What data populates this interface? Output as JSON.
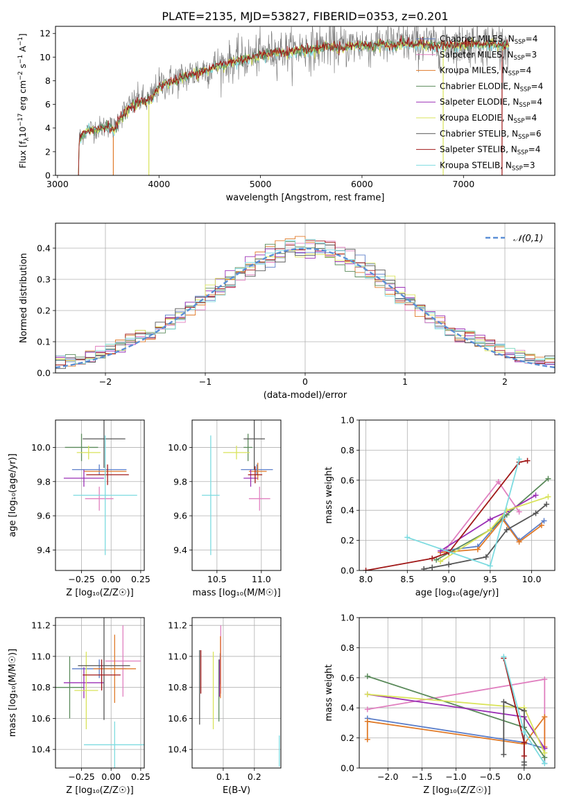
{
  "page_title": "PLATE=2135, MJD=53827, FIBERID=0353, z=0.201",
  "chart_data": [
    {
      "id": "spectrum",
      "type": "line",
      "xlabel": "wavelength [Angstrom, rest frame]",
      "ylabel_parts": {
        "main": "Flux [f",
        "sub": "λ",
        "mid": "10",
        "exp1": "−17",
        "tail": " erg cm",
        "exp2": "−2",
        "tail2": " s",
        "exp3": "−1",
        "tail3": " A",
        "exp4": "−1",
        "end": "]"
      },
      "xlim": [
        2980,
        7900
      ],
      "ylim": [
        0,
        12.6
      ],
      "xticks": [
        3000,
        4000,
        5000,
        6000,
        7000
      ],
      "yticks": [
        0,
        2,
        4,
        6,
        8,
        10,
        12
      ],
      "xtick_labels": [
        "3000",
        "4000",
        "5000",
        "6000",
        "7000"
      ],
      "ytick_labels": [
        "0",
        "2",
        "4",
        "6",
        "8",
        "10",
        "12"
      ],
      "data_curve_x": [
        3200,
        3215,
        3260,
        3300,
        3400,
        3500,
        3560,
        3600,
        3700,
        3800,
        3900,
        3950,
        4000,
        4100,
        4200,
        4300,
        4400,
        4500,
        4600,
        4700,
        4800,
        4900,
        5000,
        5100,
        5200,
        5300,
        5400,
        5500,
        5600,
        5700,
        5800,
        5900,
        6000,
        6100,
        6200,
        6300,
        6400,
        6500,
        6600,
        6700,
        6800,
        6900,
        7000,
        7100,
        7200,
        7300,
        7400,
        7450
      ],
      "data_curve_y": [
        0,
        3.2,
        3.6,
        3.9,
        4.0,
        4.2,
        4.0,
        4.8,
        5.8,
        6.4,
        6.3,
        7.0,
        7.6,
        7.9,
        8.2,
        8.5,
        8.8,
        9.1,
        9.4,
        9.6,
        9.8,
        10.0,
        10.2,
        10.4,
        10.6,
        10.5,
        10.8,
        10.7,
        10.9,
        11.0,
        10.9,
        11.0,
        11.1,
        11.0,
        11.2,
        11.0,
        11.3,
        11.1,
        11.2,
        11.0,
        11.1,
        11.0,
        11.1,
        11.2,
        11.1,
        11.2,
        11.0,
        11.1
      ],
      "model_curve_y": [
        0,
        3.0,
        3.4,
        3.8,
        3.9,
        4.1,
        3.8,
        4.6,
        5.6,
        6.2,
        6.2,
        6.8,
        7.5,
        7.8,
        8.1,
        8.4,
        8.7,
        9.0,
        9.3,
        9.5,
        9.7,
        9.9,
        10.1,
        10.3,
        10.5,
        10.4,
        10.7,
        10.6,
        10.8,
        10.9,
        10.8,
        10.9,
        11.0,
        10.9,
        11.1,
        10.9,
        11.2,
        11.0,
        11.1,
        10.9,
        11.0,
        10.9,
        11.0,
        11.1,
        11.0,
        11.1,
        10.9,
        11.0
      ],
      "legend_position": "upper-right",
      "legend": [
        {
          "name": "Chabrier MILES, N",
          "sub": "SSP",
          "val": "=4",
          "color": "#5b7ec9"
        },
        {
          "name": "Salpeter MILES, N",
          "sub": "SSP",
          "val": "=3",
          "color": "#e07fbf"
        },
        {
          "name": "Kroupa MILES, N",
          "sub": "SSP",
          "val": "=4",
          "color": "#e07a28"
        },
        {
          "name": "Chabrier ELODIE, N",
          "sub": "SSP",
          "val": "=4",
          "color": "#5a8a5a"
        },
        {
          "name": "Salpeter ELODIE, N",
          "sub": "SSP",
          "val": "=4",
          "color": "#9a2fb5"
        },
        {
          "name": "Kroupa ELODIE, N",
          "sub": "SSP",
          "val": "=4",
          "color": "#d9e35a"
        },
        {
          "name": "Chabrier STELIB, N",
          "sub": "SSP",
          "val": "=6",
          "color": "#555555"
        },
        {
          "name": "Salpeter STELIB, N",
          "sub": "SSP",
          "val": "=4",
          "color": "#a01818"
        },
        {
          "name": "Kroupa STELIB, N",
          "sub": "SSP",
          "val": "=3",
          "color": "#7ddbe0"
        }
      ],
      "cutoffs": [
        {
          "x": 3550,
          "color": "#e07a28"
        },
        {
          "x": 3900,
          "color": "#d9e35a"
        },
        {
          "x": 6800,
          "color": "#d9e35a"
        },
        {
          "x": 7380,
          "color": "#a01818"
        }
      ]
    },
    {
      "id": "residuals",
      "type": "histogram",
      "xlabel": "(data-model)/error",
      "ylabel": "Normed distribution",
      "xlim": [
        -2.5,
        2.5
      ],
      "ylim": [
        0,
        0.48
      ],
      "xticks": [
        -2,
        -1,
        0,
        1,
        2
      ],
      "xtick_labels": [
        "−2",
        "−1",
        "0",
        "1",
        "2"
      ],
      "yticks": [
        0,
        0.1,
        0.2,
        0.3,
        0.4
      ],
      "ytick_labels": [
        "0.0",
        "0.1",
        "0.2",
        "0.3",
        "0.4"
      ],
      "legend_label": "𝒩(0,1)",
      "legend_color": "#5b8fd6",
      "legend_position": "upper-right",
      "bin_width": 0.1
    },
    {
      "id": "age-vs-Z",
      "type": "errorbar",
      "xlabel": "Z [log₁₀(Z/Z☉)]",
      "ylabel": "age  [log₁₀(age/yr)]",
      "xlim": [
        -0.47,
        0.28
      ],
      "ylim": [
        9.28,
        10.16
      ],
      "xticks": [
        -0.25,
        0.0,
        0.25
      ],
      "xtick_labels": [
        "−0.25",
        "0.00",
        "0.25"
      ],
      "yticks": [
        9.4,
        9.6,
        9.8,
        10.0
      ],
      "ytick_labels": [
        "9.4",
        "9.6",
        "9.8",
        "10.0"
      ],
      "points": [
        {
          "x": -0.1,
          "y": 9.87,
          "xerr": 0.23,
          "yerr": 0.03,
          "color": "#5b7ec9"
        },
        {
          "x": -0.1,
          "y": 9.7,
          "xerr": 0.12,
          "yerr": 0.07,
          "color": "#e07fbf"
        },
        {
          "x": -0.05,
          "y": 9.86,
          "xerr": 0.18,
          "yerr": 0.04,
          "color": "#e07a28"
        },
        {
          "x": -0.25,
          "y": 10.0,
          "xerr": 0.14,
          "yerr": 0.08,
          "color": "#5a8a5a"
        },
        {
          "x": -0.23,
          "y": 9.82,
          "xerr": 0.17,
          "yerr": 0.05,
          "color": "#9a2fb5"
        },
        {
          "x": -0.19,
          "y": 9.97,
          "xerr": 0.1,
          "yerr": 0.04,
          "color": "#d9e35a"
        },
        {
          "x": -0.06,
          "y": 10.05,
          "xerr": 0.18,
          "yerr": 0.17,
          "color": "#555555"
        },
        {
          "x": -0.03,
          "y": 9.84,
          "xerr": 0.18,
          "yerr": 0.06,
          "color": "#a01818"
        },
        {
          "x": -0.05,
          "y": 9.72,
          "xerr": 0.27,
          "yerr": 0.35,
          "color": "#7ddbe0"
        }
      ]
    },
    {
      "id": "age-vs-mass",
      "type": "errorbar",
      "xlabel": "mass [log₁₀(M/M☉)]",
      "ylabel": "",
      "xlim": [
        10.22,
        11.22
      ],
      "ylim": [
        9.28,
        10.16
      ],
      "xticks": [
        10.5,
        11.0
      ],
      "xtick_labels": [
        "10.5",
        "11.0"
      ],
      "yticks": [
        9.4,
        9.6,
        9.8,
        10.0
      ],
      "ytick_labels": [
        "9.4",
        "9.6",
        "9.8",
        "10.0"
      ],
      "points": [
        {
          "x": 10.95,
          "y": 9.87,
          "xerr": 0.18,
          "yerr": 0.03,
          "color": "#5b7ec9"
        },
        {
          "x": 10.98,
          "y": 9.7,
          "xerr": 0.12,
          "yerr": 0.07,
          "color": "#e07fbf"
        },
        {
          "x": 10.96,
          "y": 9.86,
          "xerr": 0.1,
          "yerr": 0.05,
          "color": "#e07a28"
        },
        {
          "x": 10.85,
          "y": 10.0,
          "xerr": 0.05,
          "yerr": 0.08,
          "color": "#5a8a5a"
        },
        {
          "x": 10.88,
          "y": 9.82,
          "xerr": 0.08,
          "yerr": 0.05,
          "color": "#9a2fb5"
        },
        {
          "x": 10.72,
          "y": 9.97,
          "xerr": 0.15,
          "yerr": 0.04,
          "color": "#d9e35a"
        },
        {
          "x": 10.92,
          "y": 10.05,
          "xerr": 0.12,
          "yerr": 0.18,
          "color": "#555555"
        },
        {
          "x": 10.93,
          "y": 9.84,
          "xerr": 0.08,
          "yerr": 0.05,
          "color": "#a01818"
        },
        {
          "x": 10.43,
          "y": 9.72,
          "xerr": 0.1,
          "yerr": 0.35,
          "color": "#7ddbe0"
        }
      ]
    },
    {
      "id": "weight-vs-age",
      "type": "line",
      "xlabel": "age  [log₁₀(age/yr)]",
      "ylabel": "mass weight",
      "xlim": [
        7.92,
        10.28
      ],
      "ylim": [
        0,
        1.0
      ],
      "xticks": [
        8.0,
        8.5,
        9.0,
        9.5,
        10.0
      ],
      "xtick_labels": [
        "8.0",
        "8.5",
        "9.0",
        "9.5",
        "10.0"
      ],
      "yticks": [
        0,
        0.2,
        0.4,
        0.6,
        0.8,
        1.0
      ],
      "ytick_labels": [
        "0.0",
        "0.2",
        "0.4",
        "0.6",
        "0.8",
        "1.0"
      ],
      "series": [
        {
          "color": "#5b7ec9",
          "x": [
            8.9,
            9.35,
            9.65,
            9.85,
            10.15
          ],
          "y": [
            0.13,
            0.16,
            0.35,
            0.2,
            0.33
          ]
        },
        {
          "color": "#e07fbf",
          "x": [
            8.95,
            9.6,
            9.85
          ],
          "y": [
            0.13,
            0.59,
            0.39
          ]
        },
        {
          "color": "#e07a28",
          "x": [
            8.9,
            9.35,
            9.65,
            9.85,
            10.12
          ],
          "y": [
            0.12,
            0.14,
            0.34,
            0.19,
            0.3
          ]
        },
        {
          "color": "#5a8a5a",
          "x": [
            8.85,
            9.5,
            9.7,
            10.2
          ],
          "y": [
            0.07,
            0.27,
            0.37,
            0.61
          ]
        },
        {
          "color": "#9a2fb5",
          "x": [
            8.9,
            9.5,
            9.7,
            10.05
          ],
          "y": [
            0.13,
            0.34,
            0.39,
            0.5
          ]
        },
        {
          "color": "#d9e35a",
          "x": [
            8.9,
            9.5,
            9.7,
            10.2
          ],
          "y": [
            0.06,
            0.27,
            0.4,
            0.49
          ]
        },
        {
          "color": "#555555",
          "x": [
            8.7,
            8.8,
            9.0,
            9.45,
            9.7,
            10.05,
            10.18
          ],
          "y": [
            0.01,
            0.02,
            0.04,
            0.09,
            0.27,
            0.38,
            0.44
          ]
        },
        {
          "color": "#a01818",
          "x": [
            8.0,
            8.8,
            9.0,
            9.85,
            9.95
          ],
          "y": [
            0.0,
            0.08,
            0.12,
            0.72,
            0.73
          ]
        },
        {
          "color": "#7ddbe0",
          "x": [
            8.5,
            9.5,
            9.85
          ],
          "y": [
            0.22,
            0.03,
            0.74
          ]
        }
      ]
    },
    {
      "id": "mass-vs-Z",
      "type": "errorbar",
      "xlabel": "Z [log₁₀(Z/Z☉)]",
      "ylabel": "mass [log₁₀(M/M☉)]",
      "xlim": [
        -0.47,
        0.28
      ],
      "ylim": [
        10.28,
        11.25
      ],
      "xticks": [
        -0.25,
        0.0,
        0.25
      ],
      "xtick_labels": [
        "−0.25",
        "0.00",
        "0.25"
      ],
      "yticks": [
        10.4,
        10.6,
        10.8,
        11.0,
        11.2
      ],
      "ytick_labels": [
        "10.4",
        "10.6",
        "10.8",
        "11.0",
        "11.2"
      ],
      "points": [
        {
          "x": -0.1,
          "y": 10.92,
          "xerr": 0.23,
          "yerr": 0.06,
          "color": "#5b7ec9"
        },
        {
          "x": 0.1,
          "y": 10.97,
          "xerr": 0.15,
          "yerr": 0.23,
          "color": "#e07fbf"
        },
        {
          "x": 0.03,
          "y": 10.92,
          "xerr": 0.18,
          "yerr": 0.22,
          "color": "#e07a28"
        },
        {
          "x": -0.35,
          "y": 10.8,
          "xerr": 0.12,
          "yerr": 0.2,
          "color": "#5a8a5a"
        },
        {
          "x": -0.23,
          "y": 10.83,
          "xerr": 0.17,
          "yerr": 0.1,
          "color": "#9a2fb5"
        },
        {
          "x": -0.21,
          "y": 10.78,
          "xerr": 0.1,
          "yerr": 0.25,
          "color": "#d9e35a"
        },
        {
          "x": -0.06,
          "y": 10.94,
          "xerr": 0.22,
          "yerr": 0.35,
          "color": "#555555"
        },
        {
          "x": -0.08,
          "y": 10.88,
          "xerr": 0.16,
          "yerr": 0.1,
          "color": "#a01818"
        },
        {
          "x": 0.03,
          "y": 10.43,
          "xerr": 0.26,
          "yerr": 0.15,
          "color": "#7ddbe0"
        }
      ]
    },
    {
      "id": "mass-vs-ebv",
      "type": "errorbar",
      "xlabel": "E(B-V)",
      "ylabel": "",
      "xlim": [
        0.0,
        0.285
      ],
      "ylim": [
        10.28,
        11.25
      ],
      "xticks": [
        0.1,
        0.2
      ],
      "xtick_labels": [
        "0.1",
        "0.2"
      ],
      "yticks": [
        10.4,
        10.6,
        10.8,
        11.0,
        11.2
      ],
      "ytick_labels": [
        "10.4",
        "10.6",
        "10.8",
        "11.0",
        "11.2"
      ],
      "points": [
        {
          "x": 0.09,
          "y": 10.92,
          "xerr": 0.0,
          "yerr": 0.1,
          "color": "#5b7ec9"
        },
        {
          "x": 0.092,
          "y": 10.98,
          "xerr": 0.0,
          "yerr": 0.22,
          "color": "#e07fbf"
        },
        {
          "x": 0.091,
          "y": 10.93,
          "xerr": 0.0,
          "yerr": 0.2,
          "color": "#e07a28"
        },
        {
          "x": 0.086,
          "y": 10.78,
          "xerr": 0.0,
          "yerr": 0.2,
          "color": "#5a8a5a"
        },
        {
          "x": 0.088,
          "y": 10.86,
          "xerr": 0.0,
          "yerr": 0.12,
          "color": "#9a2fb5"
        },
        {
          "x": 0.068,
          "y": 10.78,
          "xerr": 0.0,
          "yerr": 0.25,
          "color": "#d9e35a"
        },
        {
          "x": 0.024,
          "y": 10.8,
          "xerr": 0.0,
          "yerr": 0.24,
          "color": "#555555"
        },
        {
          "x": 0.028,
          "y": 10.9,
          "xerr": 0.0,
          "yerr": 0.14,
          "color": "#a01818"
        },
        {
          "x": 0.28,
          "y": 10.39,
          "xerr": 0.0,
          "yerr": 0.1,
          "color": "#7ddbe0"
        }
      ]
    },
    {
      "id": "weight-vs-Z",
      "type": "line",
      "xlabel": "Z [log₁₀(Z/Z☉)]",
      "ylabel": "mass weight",
      "xlim": [
        -2.42,
        0.45
      ],
      "ylim": [
        0,
        1.0
      ],
      "xticks": [
        -2.0,
        -1.5,
        -1.0,
        -0.5,
        0.0
      ],
      "xtick_labels": [
        "−2.0",
        "−1.5",
        "−1.0",
        "−0.5",
        "0.0"
      ],
      "yticks": [
        0,
        0.2,
        0.4,
        0.6,
        0.8,
        1.0
      ],
      "ytick_labels": [
        "0.0",
        "0.2",
        "0.4",
        "0.6",
        "0.8",
        "1.0"
      ],
      "series": [
        {
          "color": "#5b7ec9",
          "x": [
            -2.3,
            0.0,
            0.3,
            0.3
          ],
          "y": [
            0.33,
            0.17,
            0.13,
            0.03
          ]
        },
        {
          "color": "#e07fbf",
          "x": [
            -2.3,
            0.3,
            0.3
          ],
          "y": [
            0.39,
            0.59,
            0.13
          ]
        },
        {
          "color": "#e07a28",
          "x": [
            -2.3,
            -2.3,
            0.0,
            0.3,
            0.3
          ],
          "y": [
            0.19,
            0.31,
            0.16,
            0.34,
            0.14
          ]
        },
        {
          "color": "#5a8a5a",
          "x": [
            -2.3,
            0.0,
            0.3
          ],
          "y": [
            0.61,
            0.27,
            0.07
          ]
        },
        {
          "color": "#9a2fb5",
          "x": [
            -2.3,
            0.0,
            0.3
          ],
          "y": [
            0.49,
            0.34,
            0.13
          ]
        },
        {
          "color": "#d9e35a",
          "x": [
            -2.3,
            0.0,
            0.3
          ],
          "y": [
            0.49,
            0.4,
            0.1
          ]
        },
        {
          "color": "#555555",
          "x": [
            -0.3,
            -0.3,
            0.0,
            0.0,
            0.0
          ],
          "y": [
            0.09,
            0.44,
            0.38,
            0.04,
            0.02
          ]
        },
        {
          "color": "#a01818",
          "x": [
            -0.3,
            0.0,
            0.0
          ],
          "y": [
            0.73,
            0.17,
            0.08
          ]
        },
        {
          "color": "#7ddbe0",
          "x": [
            -0.3,
            0.0,
            0.3
          ],
          "y": [
            0.74,
            0.24,
            0.03
          ]
        }
      ]
    }
  ]
}
